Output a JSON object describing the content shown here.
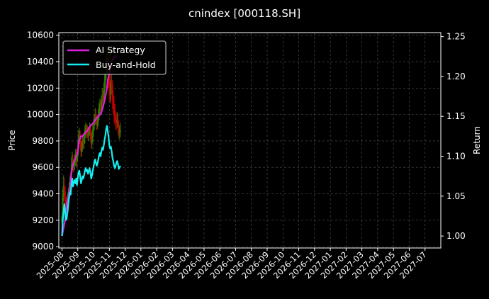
{
  "chart_data": {
    "type": "line",
    "title": "cnindex [000118.SH]",
    "ylabel_left": "Price",
    "ylabel_right": "Return",
    "ylim_left": [
      8990,
      10620
    ],
    "ylim_right": [
      0.985,
      1.255
    ],
    "left_ticks": [
      "9000",
      "9200",
      "9400",
      "9600",
      "9800",
      "10000",
      "10200",
      "10400",
      "10600"
    ],
    "right_ticks": [
      "1.00",
      "1.05",
      "1.10",
      "1.15",
      "1.20",
      "1.25"
    ],
    "x_ticks": [
      "2025-08",
      "2025-09",
      "2025-10",
      "2025-11",
      "2025-12",
      "2026-01",
      "2026-02",
      "2026-03",
      "2026-04",
      "2026-05",
      "2026-06",
      "2026-07",
      "2026-08",
      "2026-09",
      "2026-10",
      "2026-11",
      "2026-12",
      "2027-01",
      "2027-02",
      "2027-03",
      "2027-04",
      "2027-05",
      "2027-06",
      "2027-07"
    ],
    "x_range_months": [
      -0.2,
      24.0
    ],
    "grid": true,
    "legend_position": "upper-left",
    "colors": {
      "up": "#2e7d00",
      "down": "#c40000",
      "ai": "#e020e0",
      "bh": "#14f0f0"
    },
    "candles": [
      {
        "x": 0.0,
        "o": 9180,
        "c": 9230,
        "h": 9260,
        "l": 9130
      },
      {
        "x": 0.05,
        "o": 9230,
        "c": 9380,
        "h": 9440,
        "l": 9200
      },
      {
        "x": 0.1,
        "o": 9380,
        "c": 9460,
        "h": 9540,
        "l": 9340
      },
      {
        "x": 0.15,
        "o": 9460,
        "c": 9420,
        "h": 9520,
        "l": 9360
      },
      {
        "x": 0.2,
        "o": 9420,
        "c": 9320,
        "h": 9460,
        "l": 9280
      },
      {
        "x": 0.25,
        "o": 9320,
        "c": 9300,
        "h": 9360,
        "l": 9260
      },
      {
        "x": 0.3,
        "o": 9300,
        "c": 9330,
        "h": 9380,
        "l": 9270
      },
      {
        "x": 0.35,
        "o": 9330,
        "c": 9360,
        "h": 9410,
        "l": 9300
      },
      {
        "x": 0.4,
        "o": 9360,
        "c": 9400,
        "h": 9440,
        "l": 9330
      },
      {
        "x": 0.45,
        "o": 9400,
        "c": 9450,
        "h": 9490,
        "l": 9370
      },
      {
        "x": 0.5,
        "o": 9450,
        "c": 9480,
        "h": 9530,
        "l": 9420
      },
      {
        "x": 0.55,
        "o": 9480,
        "c": 9500,
        "h": 9560,
        "l": 9440
      },
      {
        "x": 0.6,
        "o": 9500,
        "c": 9620,
        "h": 9680,
        "l": 9480
      },
      {
        "x": 0.65,
        "o": 9620,
        "c": 9650,
        "h": 9720,
        "l": 9580
      },
      {
        "x": 0.7,
        "o": 9650,
        "c": 9600,
        "h": 9700,
        "l": 9560
      },
      {
        "x": 0.75,
        "o": 9600,
        "c": 9620,
        "h": 9660,
        "l": 9570
      },
      {
        "x": 0.8,
        "o": 9620,
        "c": 9660,
        "h": 9700,
        "l": 9580
      },
      {
        "x": 0.85,
        "o": 9660,
        "c": 9700,
        "h": 9740,
        "l": 9610
      },
      {
        "x": 0.9,
        "o": 9700,
        "c": 9650,
        "h": 9740,
        "l": 9600
      },
      {
        "x": 0.95,
        "o": 9650,
        "c": 9680,
        "h": 9720,
        "l": 9610
      },
      {
        "x": 1.0,
        "o": 9680,
        "c": 9750,
        "h": 9800,
        "l": 9640
      },
      {
        "x": 1.05,
        "o": 9750,
        "c": 9830,
        "h": 9880,
        "l": 9700
      },
      {
        "x": 1.1,
        "o": 9830,
        "c": 9850,
        "h": 9900,
        "l": 9780
      },
      {
        "x": 1.15,
        "o": 9850,
        "c": 9800,
        "h": 9880,
        "l": 9740
      },
      {
        "x": 1.2,
        "o": 9800,
        "c": 9720,
        "h": 9840,
        "l": 9680
      },
      {
        "x": 1.25,
        "o": 9720,
        "c": 9760,
        "h": 9800,
        "l": 9680
      },
      {
        "x": 1.3,
        "o": 9760,
        "c": 9800,
        "h": 9840,
        "l": 9720
      },
      {
        "x": 1.35,
        "o": 9800,
        "c": 9780,
        "h": 9840,
        "l": 9740
      },
      {
        "x": 1.4,
        "o": 9780,
        "c": 9820,
        "h": 9860,
        "l": 9740
      },
      {
        "x": 1.45,
        "o": 9820,
        "c": 9880,
        "h": 9920,
        "l": 9780
      },
      {
        "x": 1.5,
        "o": 9880,
        "c": 9900,
        "h": 9940,
        "l": 9840
      },
      {
        "x": 1.55,
        "o": 9900,
        "c": 9860,
        "h": 9930,
        "l": 9820
      },
      {
        "x": 1.6,
        "o": 9860,
        "c": 9880,
        "h": 9920,
        "l": 9820
      },
      {
        "x": 1.65,
        "o": 9880,
        "c": 9840,
        "h": 9910,
        "l": 9800
      },
      {
        "x": 1.7,
        "o": 9840,
        "c": 9870,
        "h": 9900,
        "l": 9800
      },
      {
        "x": 1.75,
        "o": 9870,
        "c": 9900,
        "h": 9940,
        "l": 9840
      },
      {
        "x": 1.8,
        "o": 9900,
        "c": 9860,
        "h": 9930,
        "l": 9810
      },
      {
        "x": 1.85,
        "o": 9860,
        "c": 9780,
        "h": 9880,
        "l": 9740
      },
      {
        "x": 1.9,
        "o": 9780,
        "c": 9820,
        "h": 9860,
        "l": 9740
      },
      {
        "x": 1.95,
        "o": 9820,
        "c": 9880,
        "h": 9920,
        "l": 9790
      },
      {
        "x": 2.0,
        "o": 9880,
        "c": 9920,
        "h": 9960,
        "l": 9850
      },
      {
        "x": 2.05,
        "o": 9920,
        "c": 9960,
        "h": 10000,
        "l": 9880
      },
      {
        "x": 2.1,
        "o": 9960,
        "c": 10000,
        "h": 10050,
        "l": 9920
      },
      {
        "x": 2.15,
        "o": 10000,
        "c": 9960,
        "h": 10040,
        "l": 9920
      },
      {
        "x": 2.2,
        "o": 9960,
        "c": 9920,
        "h": 10000,
        "l": 9880
      },
      {
        "x": 2.25,
        "o": 9920,
        "c": 9950,
        "h": 9990,
        "l": 9890
      },
      {
        "x": 2.3,
        "o": 9950,
        "c": 10000,
        "h": 10040,
        "l": 9910
      },
      {
        "x": 2.35,
        "o": 10000,
        "c": 10050,
        "h": 10090,
        "l": 9960
      },
      {
        "x": 2.4,
        "o": 10050,
        "c": 10080,
        "h": 10120,
        "l": 10000
      },
      {
        "x": 2.45,
        "o": 10080,
        "c": 10040,
        "h": 10110,
        "l": 9990
      },
      {
        "x": 2.5,
        "o": 10040,
        "c": 10100,
        "h": 10140,
        "l": 10000
      },
      {
        "x": 2.55,
        "o": 10100,
        "c": 10150,
        "h": 10200,
        "l": 10060
      },
      {
        "x": 2.6,
        "o": 10150,
        "c": 10120,
        "h": 10190,
        "l": 10060
      },
      {
        "x": 2.65,
        "o": 10120,
        "c": 10180,
        "h": 10240,
        "l": 10080
      },
      {
        "x": 2.7,
        "o": 10180,
        "c": 10250,
        "h": 10300,
        "l": 10140
      },
      {
        "x": 2.75,
        "o": 10250,
        "c": 10300,
        "h": 10360,
        "l": 10200
      },
      {
        "x": 2.8,
        "o": 10300,
        "c": 10380,
        "h": 10440,
        "l": 10260
      },
      {
        "x": 2.85,
        "o": 10380,
        "c": 10450,
        "h": 10520,
        "l": 10330
      },
      {
        "x": 2.9,
        "o": 10450,
        "c": 10380,
        "h": 10500,
        "l": 10300
      },
      {
        "x": 2.95,
        "o": 10380,
        "c": 10300,
        "h": 10440,
        "l": 10200
      },
      {
        "x": 3.0,
        "o": 10300,
        "c": 10200,
        "h": 10350,
        "l": 10100
      },
      {
        "x": 3.05,
        "o": 10200,
        "c": 10150,
        "h": 10260,
        "l": 10080
      },
      {
        "x": 3.1,
        "o": 10150,
        "c": 10250,
        "h": 10500,
        "l": 10100
      },
      {
        "x": 3.15,
        "o": 10250,
        "c": 10220,
        "h": 10300,
        "l": 10160
      },
      {
        "x": 3.2,
        "o": 10220,
        "c": 10120,
        "h": 10260,
        "l": 10040
      },
      {
        "x": 3.25,
        "o": 10120,
        "c": 10080,
        "h": 10180,
        "l": 10000
      },
      {
        "x": 3.3,
        "o": 10080,
        "c": 10000,
        "h": 10140,
        "l": 9940
      },
      {
        "x": 3.35,
        "o": 10000,
        "c": 9980,
        "h": 10080,
        "l": 9920
      },
      {
        "x": 3.4,
        "o": 9980,
        "c": 9950,
        "h": 10030,
        "l": 9890
      },
      {
        "x": 3.45,
        "o": 9950,
        "c": 9940,
        "h": 10010,
        "l": 9880
      },
      {
        "x": 3.5,
        "o": 9940,
        "c": 9960,
        "h": 10020,
        "l": 9900
      },
      {
        "x": 3.55,
        "o": 9960,
        "c": 9900,
        "h": 10000,
        "l": 9840
      },
      {
        "x": 3.6,
        "o": 9900,
        "c": 9860,
        "h": 9950,
        "l": 9820
      },
      {
        "x": 3.65,
        "o": 9860,
        "c": 9870,
        "h": 9920,
        "l": 9810
      },
      {
        "x": 3.7,
        "o": 9870,
        "c": 9880,
        "h": 9940,
        "l": 9830
      }
    ],
    "series": [
      {
        "name": "AI Strategy",
        "points": [
          [
            0.0,
            1.0
          ],
          [
            0.1,
            1.01
          ],
          [
            0.2,
            1.02
          ],
          [
            0.3,
            1.04
          ],
          [
            0.4,
            1.05
          ],
          [
            0.5,
            1.06
          ],
          [
            0.6,
            1.08
          ],
          [
            0.7,
            1.09
          ],
          [
            0.8,
            1.095
          ],
          [
            0.9,
            1.1
          ],
          [
            1.0,
            1.105
          ],
          [
            1.05,
            1.115
          ],
          [
            1.1,
            1.12
          ],
          [
            1.2,
            1.125
          ],
          [
            1.3,
            1.125
          ],
          [
            1.4,
            1.128
          ],
          [
            1.5,
            1.13
          ],
          [
            1.6,
            1.132
          ],
          [
            1.7,
            1.135
          ],
          [
            1.8,
            1.138
          ],
          [
            1.9,
            1.14
          ],
          [
            2.0,
            1.142
          ],
          [
            2.1,
            1.145
          ],
          [
            2.2,
            1.148
          ],
          [
            2.3,
            1.15
          ],
          [
            2.4,
            1.152
          ],
          [
            2.5,
            1.155
          ],
          [
            2.6,
            1.162
          ],
          [
            2.7,
            1.17
          ],
          [
            2.8,
            1.18
          ],
          [
            2.85,
            1.185
          ],
          [
            2.9,
            1.195
          ],
          [
            3.0,
            1.205
          ],
          [
            3.05,
            1.21
          ],
          [
            3.1,
            1.218
          ],
          [
            3.2,
            1.22
          ],
          [
            3.3,
            1.225
          ],
          [
            3.35,
            1.226
          ],
          [
            3.4,
            1.225
          ],
          [
            3.45,
            1.224
          ]
        ]
      },
      {
        "name": "Buy-and-Hold",
        "points": [
          [
            0.0,
            1.0
          ],
          [
            0.05,
            1.02
          ],
          [
            0.1,
            1.03
          ],
          [
            0.15,
            1.04
          ],
          [
            0.2,
            1.03
          ],
          [
            0.25,
            1.02
          ],
          [
            0.3,
            1.022
          ],
          [
            0.35,
            1.03
          ],
          [
            0.4,
            1.04
          ],
          [
            0.45,
            1.048
          ],
          [
            0.5,
            1.055
          ],
          [
            0.55,
            1.052
          ],
          [
            0.6,
            1.065
          ],
          [
            0.65,
            1.072
          ],
          [
            0.7,
            1.062
          ],
          [
            0.75,
            1.068
          ],
          [
            0.8,
            1.07
          ],
          [
            0.85,
            1.066
          ],
          [
            0.9,
            1.072
          ],
          [
            0.95,
            1.064
          ],
          [
            1.0,
            1.072
          ],
          [
            1.05,
            1.08
          ],
          [
            1.1,
            1.082
          ],
          [
            1.15,
            1.075
          ],
          [
            1.2,
            1.066
          ],
          [
            1.25,
            1.07
          ],
          [
            1.3,
            1.075
          ],
          [
            1.35,
            1.072
          ],
          [
            1.4,
            1.076
          ],
          [
            1.45,
            1.082
          ],
          [
            1.5,
            1.085
          ],
          [
            1.55,
            1.081
          ],
          [
            1.6,
            1.083
          ],
          [
            1.65,
            1.078
          ],
          [
            1.7,
            1.081
          ],
          [
            1.75,
            1.085
          ],
          [
            1.8,
            1.08
          ],
          [
            1.85,
            1.072
          ],
          [
            1.9,
            1.076
          ],
          [
            1.95,
            1.082
          ],
          [
            2.0,
            1.087
          ],
          [
            2.05,
            1.092
          ],
          [
            2.1,
            1.096
          ],
          [
            2.15,
            1.092
          ],
          [
            2.2,
            1.088
          ],
          [
            2.25,
            1.091
          ],
          [
            2.3,
            1.096
          ],
          [
            2.35,
            1.101
          ],
          [
            2.4,
            1.104
          ],
          [
            2.45,
            1.1
          ],
          [
            2.5,
            1.106
          ],
          [
            2.55,
            1.111
          ],
          [
            2.6,
            1.108
          ],
          [
            2.65,
            1.114
          ],
          [
            2.7,
            1.121
          ],
          [
            2.75,
            1.126
          ],
          [
            2.8,
            1.134
          ],
          [
            2.85,
            1.138
          ],
          [
            2.9,
            1.132
          ],
          [
            2.95,
            1.124
          ],
          [
            3.0,
            1.114
          ],
          [
            3.05,
            1.11
          ],
          [
            3.1,
            1.112
          ],
          [
            3.15,
            1.106
          ],
          [
            3.2,
            1.098
          ],
          [
            3.25,
            1.094
          ],
          [
            3.3,
            1.088
          ],
          [
            3.35,
            1.085
          ],
          [
            3.4,
            1.088
          ],
          [
            3.45,
            1.092
          ],
          [
            3.5,
            1.094
          ],
          [
            3.55,
            1.09
          ],
          [
            3.6,
            1.084
          ],
          [
            3.65,
            1.086
          ],
          [
            3.7,
            1.088
          ]
        ]
      }
    ]
  }
}
